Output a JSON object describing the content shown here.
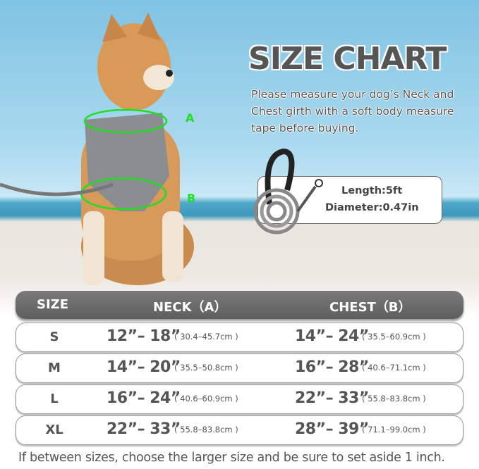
{
  "title": "SIZE CHART",
  "description": "Please measure your dog’s Neck and Chest girth with a soft body measure tape before buying.",
  "markers": {
    "a": "A",
    "b": "B"
  },
  "leash_specs": {
    "length": "Length:5ft",
    "diameter": "Diameter:0.47in"
  },
  "table": {
    "headers": {
      "size": "SIZE",
      "neck": "NECK（A）",
      "chest": "CHEST（B）"
    },
    "rows": [
      {
        "size": "S",
        "neck": "12”– 18”",
        "neck_cm": "( 30.4–45.7cm )",
        "chest": "14”– 24”",
        "chest_cm": "( 35.5–60.9cm )"
      },
      {
        "size": "M",
        "neck": "14”– 20”",
        "neck_cm": "( 35.5–50.8cm )",
        "chest": "16”– 28”",
        "chest_cm": "( 40.6–71.1cm )"
      },
      {
        "size": "L",
        "neck": "16”– 24”",
        "neck_cm": "( 40.6–60.9cm )",
        "chest": "22”– 33”",
        "chest_cm": "( 55.8–83.8cm )"
      },
      {
        "size": "XL",
        "neck": "22”– 33”",
        "neck_cm": "( 55.8–83.8cm )",
        "chest": "28”– 39”",
        "chest_cm": "( 71.1–99.0cm )"
      }
    ]
  },
  "footnote": "If between sizes, choose the larger size and be sure to set aside 1 inch.",
  "colors": {
    "header": "#6b6b6b",
    "marker": "#22dd22",
    "text": "#555555"
  }
}
